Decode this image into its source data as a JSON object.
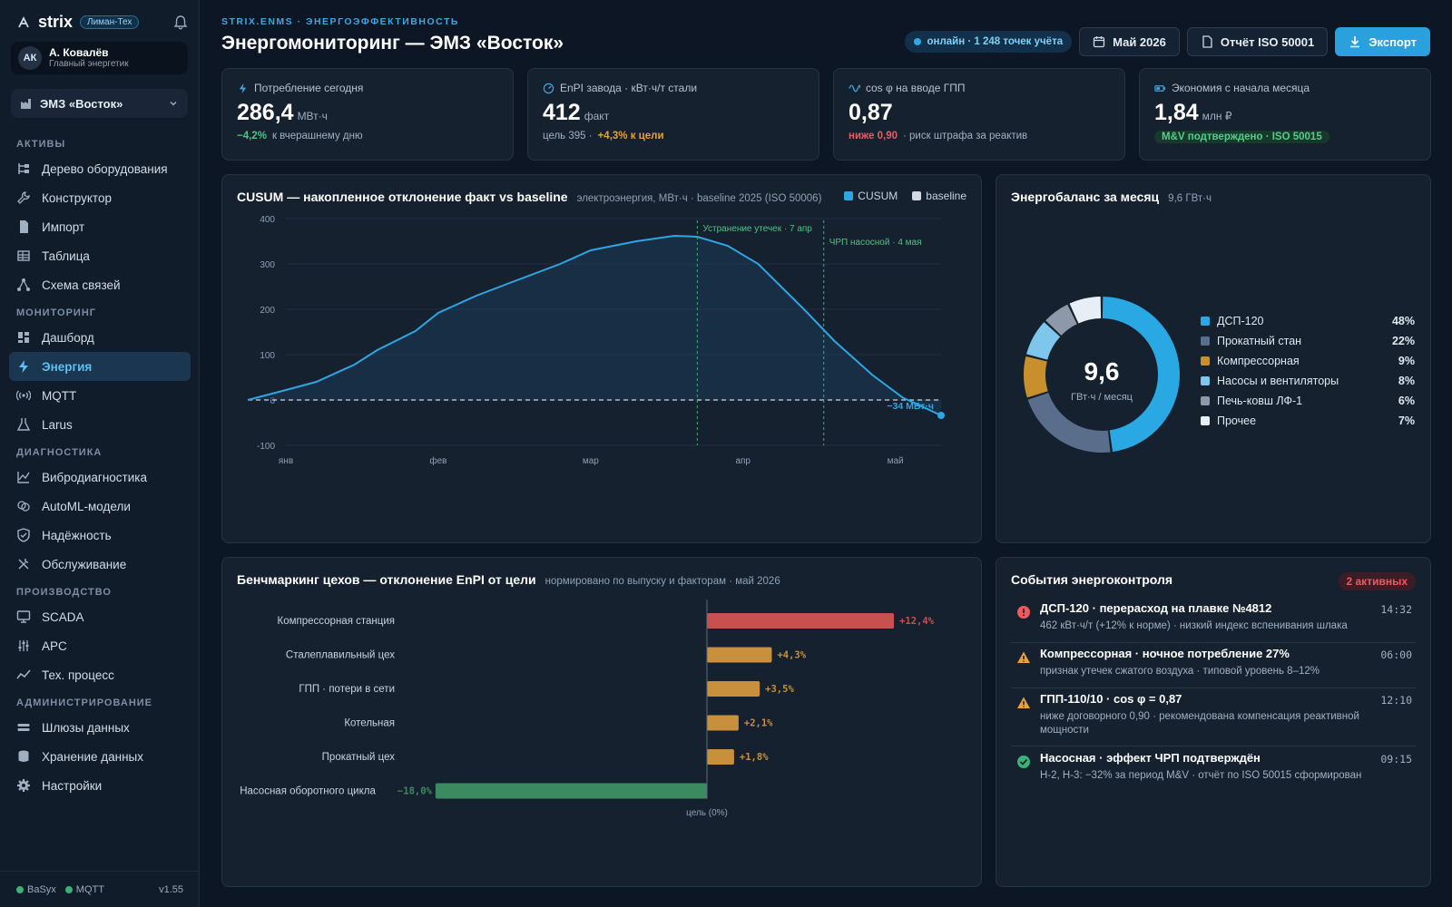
{
  "app": {
    "name": "strix",
    "tag": "Лиман-Тех"
  },
  "user": {
    "initials": "АК",
    "name": "А. Ковалёв",
    "role": "Главный энергетик"
  },
  "plant_selector": {
    "value": "ЭМЗ «Восток»"
  },
  "nav": {
    "sections": [
      {
        "title": "АКТИВЫ",
        "items": [
          {
            "label": "Дерево оборудования",
            "icon": "tree-icon"
          },
          {
            "label": "Конструктор",
            "icon": "wrench-icon"
          },
          {
            "label": "Импорт",
            "icon": "file-import-icon"
          },
          {
            "label": "Таблица",
            "icon": "table-icon"
          },
          {
            "label": "Схема связей",
            "icon": "graph-icon"
          }
        ]
      },
      {
        "title": "МОНИТОРИНГ",
        "items": [
          {
            "label": "Дашборд",
            "icon": "dashboard-icon"
          },
          {
            "label": "Энергия",
            "icon": "bolt-icon",
            "active": true
          },
          {
            "label": "MQTT",
            "icon": "broadcast-icon"
          },
          {
            "label": "Larus",
            "icon": "flask-icon"
          }
        ]
      },
      {
        "title": "ДИАГНОСТИКА",
        "items": [
          {
            "label": "Вибродиагностика",
            "icon": "line-chart-icon"
          },
          {
            "label": "AutoML-модели",
            "icon": "brain-icon"
          },
          {
            "label": "Надёжность",
            "icon": "shield-icon"
          },
          {
            "label": "Обслуживание",
            "icon": "tools-icon"
          }
        ]
      },
      {
        "title": "ПРОИЗВОДСТВО",
        "items": [
          {
            "label": "SCADA",
            "icon": "monitor-icon"
          },
          {
            "label": "APC",
            "icon": "sliders-icon"
          },
          {
            "label": "Тех. процесс",
            "icon": "trend-icon"
          }
        ]
      },
      {
        "title": "АДМИНИСТРИРОВАНИЕ",
        "items": [
          {
            "label": "Шлюзы данных",
            "icon": "gateway-icon"
          },
          {
            "label": "Хранение данных",
            "icon": "database-icon"
          },
          {
            "label": "Настройки",
            "icon": "gear-icon"
          }
        ]
      }
    ]
  },
  "footer": {
    "s1": "BaSyx",
    "s2": "MQTT",
    "version": "v1.55"
  },
  "header": {
    "breadcrumb": "STRIX.ENMS · ЭНЕРГОЭФФЕКТИВНОСТЬ",
    "title": "Энергомониторинг — ЭМЗ «Восток»",
    "online": "онлайн · 1 248 точек учёта",
    "period": "Май 2026",
    "report": "Отчёт ISO 50001",
    "export": "Экспорт"
  },
  "kpis": [
    {
      "label": "Потребление сегодня",
      "value": "286,4",
      "unit": "МВт·ч",
      "delta": "−4,2%",
      "note": "к вчерашнему дню",
      "icon": "bolt-icon"
    },
    {
      "label": "EnPI завода · кВт·ч/т стали",
      "value": "412",
      "unit": "факт",
      "note": "цель 395 ·",
      "delta": "+4,3% к цели",
      "icon": "gauge-icon"
    },
    {
      "label": "cos φ на вводе ГПП",
      "value": "0,87",
      "unit": "",
      "delta": "ниже 0,90",
      "note": "· риск штрафа за реактив",
      "icon": "wave-icon"
    },
    {
      "label": "Экономия с начала месяца",
      "value": "1,84",
      "unit": "млн ₽",
      "badge": "M&V подтверждено · ISO 50015",
      "icon": "battery-icon"
    }
  ],
  "cusum": {
    "title": "CUSUM — накопленное отклонение факт vs baseline",
    "subtitle": "электроэнергия, МВт·ч · baseline 2025 (ISO 50006)",
    "legend": [
      "CUSUM",
      "baseline"
    ],
    "annotations": [
      "Устранение утечек · 7 апр",
      "ЧРП насосной · 4 мая"
    ],
    "end_label": "−34 МВт·ч"
  },
  "chart_data": [
    {
      "type": "line",
      "title": "CUSUM — накопленное отклонение факт vs baseline",
      "x_ticks": [
        "янв",
        "фев",
        "мар",
        "апр",
        "май"
      ],
      "y_ticks": [
        400,
        300,
        200,
        100,
        0,
        -100
      ],
      "ylim": [
        -100,
        400
      ],
      "x_range": [
        0,
        4.3
      ],
      "series": [
        {
          "name": "CUSUM",
          "x": [
            -0.25,
            0,
            0.2,
            0.45,
            0.6,
            0.85,
            1.0,
            1.25,
            1.5,
            1.8,
            2.0,
            2.3,
            2.55,
            2.7,
            2.9,
            3.1,
            3.4,
            3.6,
            3.85,
            4.05,
            4.3
          ],
          "y": [
            0,
            22,
            40,
            78,
            110,
            152,
            192,
            230,
            262,
            300,
            330,
            350,
            362,
            360,
            340,
            300,
            200,
            130,
            55,
            5,
            -34
          ]
        },
        {
          "name": "baseline",
          "x": [
            -0.25,
            4.3
          ],
          "y": [
            0,
            0
          ]
        }
      ],
      "events": [
        {
          "x": 2.7,
          "label": "Устранение утечек · 7 апр"
        },
        {
          "x": 3.53,
          "label": "ЧРП насосной · 4 мая"
        }
      ]
    },
    {
      "type": "pie",
      "title": "Энергобаланс за месяц",
      "total": "9,6",
      "total_unit": "ГВт·ч / месяц",
      "labels": [
        "ДСП-120",
        "Прокатный стан",
        "Компрессорная",
        "Насосы и вентиляторы",
        "Печь-ковш ЛФ-1",
        "Прочее"
      ],
      "values": [
        48,
        22,
        9,
        8,
        6,
        7
      ],
      "colors": [
        "#29a8e4",
        "#5a6e8c",
        "#c88f2c",
        "#7ec6ec",
        "#8d99ab",
        "#e8eef5"
      ]
    },
    {
      "type": "bar",
      "title": "Бенчмаркинг цехов — отклонение EnPI от цели",
      "categories": [
        "Компрессорная станция",
        "Сталеплавильный цех",
        "ГПП · потери в сети",
        "Котельная",
        "Прокатный цех",
        "Насосная оборотного цикла"
      ],
      "values": [
        12.4,
        4.3,
        3.5,
        2.1,
        1.8,
        -18.0
      ],
      "labels": [
        "+12,4%",
        "+4,3%",
        "+3,5%",
        "+2,1%",
        "+1,8%",
        "−18,0%"
      ],
      "colors": [
        "#c75050",
        "#c88f3c",
        "#c88f3c",
        "#c88f3c",
        "#c88f3c",
        "#3c8a5f"
      ],
      "xlim": [
        -18.6,
        16
      ],
      "axis_label": "цель (0%)"
    }
  ],
  "balance": {
    "title": "Энергобаланс за месяц",
    "subtitle": "9,6 ГВт·ч"
  },
  "bench": {
    "title": "Бенчмаркинг цехов — отклонение EnPI от цели",
    "subtitle": "нормировано по выпуску и факторам · май 2026"
  },
  "events": {
    "title": "События энергоконтроля",
    "badge": "2 активных",
    "items": [
      {
        "title": "ДСП-120 · перерасход на плавке №4812",
        "desc": "462 кВт·ч/т (+12% к норме) · низкий индекс вспенивания шлака",
        "time": "14:32",
        "icon": "error-icon",
        "color": "#f0595e"
      },
      {
        "title": "Компрессорная · ночное потребление 27%",
        "desc": "признак утечек сжатого воздуха · типовой уровень 8–12%",
        "time": "06:00",
        "icon": "warning-icon",
        "color": "#e6a13b"
      },
      {
        "title": "ГПП-110/10 · cos φ = 0,87",
        "desc": "ниже договорного 0,90 · рекомендована компенсация реактивной мощности",
        "time": "12:10",
        "icon": "warning-icon",
        "color": "#e6a13b"
      },
      {
        "title": "Насосная · эффект ЧРП подтверждён",
        "desc": "Н-2, Н-3: −32% за период M&V · отчёт по ISO 50015 сформирован",
        "time": "09:15",
        "icon": "check-circle-icon",
        "color": "#3bb273"
      }
    ]
  }
}
